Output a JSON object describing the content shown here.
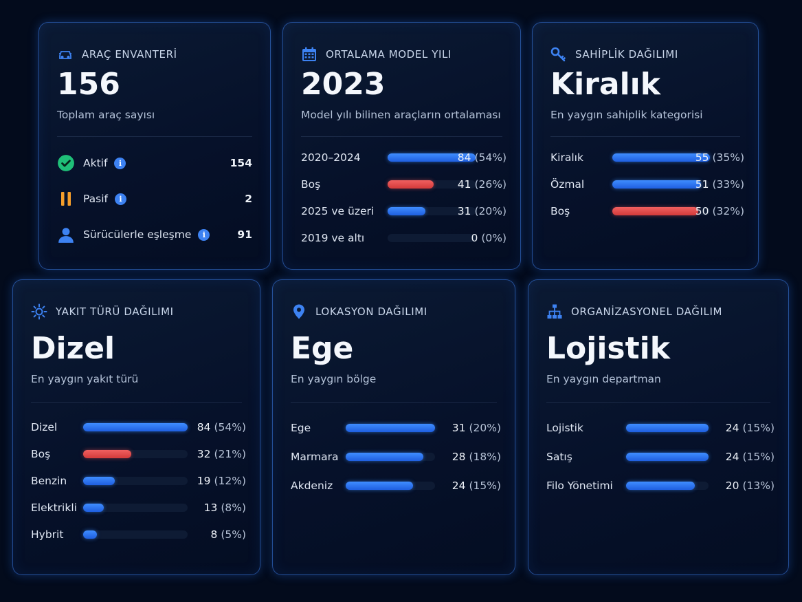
{
  "colors": {
    "accent_blue": "#2f7bf5",
    "accent_red": "#e04a4a",
    "check_green": "#1fbf78",
    "pause_orange": "#f59e2b",
    "background": "#030b1c"
  },
  "inventory": {
    "icon": "car-icon",
    "title": "ARAÇ ENVANTERİ",
    "value": "156",
    "subtitle": "Toplam araç sayısı",
    "stats": [
      {
        "icon": "check-circle-icon",
        "label": "Aktif",
        "value": "154"
      },
      {
        "icon": "pause-icon",
        "label": "Pasif",
        "value": "2"
      },
      {
        "icon": "user-icon",
        "label": "Sürücülerle eşleşme",
        "value": "91"
      }
    ]
  },
  "model_year": {
    "icon": "calendar-icon",
    "title": "ORTALAMA MODEL YILI",
    "value": "2023",
    "subtitle": "Model yılı bilinen araçların ortalaması",
    "rows": [
      {
        "label": "2020–2024",
        "count": "84",
        "pct": "(54%)",
        "fraction": 1.0,
        "color": "blue"
      },
      {
        "label": "Boş",
        "count": "41",
        "pct": "(26%)",
        "fraction": 0.52,
        "color": "red"
      },
      {
        "label": "2025 ve üzeri",
        "count": "31",
        "pct": "(20%)",
        "fraction": 0.43,
        "color": "blue"
      },
      {
        "label": "2019 ve altı",
        "count": "0",
        "pct": "(0%)",
        "fraction": 0.0,
        "color": "blue"
      }
    ]
  },
  "ownership": {
    "icon": "key-icon",
    "title": "SAHİPLİK DAĞILIMI",
    "value": "Kiralık",
    "subtitle": "En yaygın sahiplik kategorisi",
    "rows": [
      {
        "label": "Kiralık",
        "count": "55",
        "pct": "(35%)",
        "fraction": 1.0,
        "color": "blue"
      },
      {
        "label": "Özmal",
        "count": "51",
        "pct": "(33%)",
        "fraction": 0.91,
        "color": "blue"
      },
      {
        "label": "Boş",
        "count": "50",
        "pct": "(32%)",
        "fraction": 0.88,
        "color": "red"
      }
    ]
  },
  "fuel": {
    "icon": "sun-icon",
    "title": "YAKIT TÜRÜ DAĞILIMI",
    "value": "Dizel",
    "subtitle": "En yaygın yakıt türü",
    "rows": [
      {
        "label": "Dizel",
        "count": "84",
        "pct": "(54%)",
        "fraction": 1.0,
        "color": "blue"
      },
      {
        "label": "Boş",
        "count": "32",
        "pct": "(21%)",
        "fraction": 0.46,
        "color": "red"
      },
      {
        "label": "Benzin",
        "count": "19",
        "pct": "(12%)",
        "fraction": 0.3,
        "color": "blue"
      },
      {
        "label": "Elektrikli",
        "count": "13",
        "pct": "(8%)",
        "fraction": 0.2,
        "color": "blue"
      },
      {
        "label": "Hybrit",
        "count": "8",
        "pct": "(5%)",
        "fraction": 0.13,
        "color": "blue"
      }
    ]
  },
  "location": {
    "icon": "map-pin-icon",
    "title": "LOKASYON DAĞILIMI",
    "value": "Ege",
    "subtitle": "En yaygın bölge",
    "rows": [
      {
        "label": "Ege",
        "count": "31",
        "pct": "(20%)",
        "fraction": 1.0,
        "color": "blue"
      },
      {
        "label": "Marmara",
        "count": "28",
        "pct": "(18%)",
        "fraction": 0.87,
        "color": "blue"
      },
      {
        "label": "Akdeniz",
        "count": "24",
        "pct": "(15%)",
        "fraction": 0.75,
        "color": "blue"
      }
    ]
  },
  "organization": {
    "icon": "org-chart-icon",
    "title": "ORGANİZASYONEL DAĞILIM",
    "value": "Lojistik",
    "subtitle": "En yaygın departman",
    "rows": [
      {
        "label": "Lojistik",
        "count": "24",
        "pct": "(15%)",
        "fraction": 1.0,
        "color": "blue"
      },
      {
        "label": "Satış",
        "count": "24",
        "pct": "(15%)",
        "fraction": 1.0,
        "color": "blue"
      },
      {
        "label": "Filo Yönetimi",
        "count": "20",
        "pct": "(13%)",
        "fraction": 0.83,
        "color": "blue"
      }
    ]
  }
}
